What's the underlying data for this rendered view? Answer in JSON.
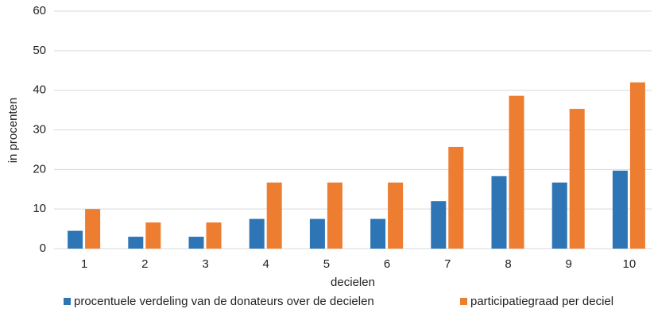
{
  "chart_data": {
    "type": "bar",
    "categories": [
      "1",
      "2",
      "3",
      "4",
      "5",
      "6",
      "7",
      "8",
      "9",
      "10"
    ],
    "series": [
      {
        "name": "procentuele verdeling van de donateurs over de decielen",
        "color": "#2e75b6",
        "values": [
          4.5,
          3,
          3,
          7.5,
          7.5,
          7.5,
          12,
          18.3,
          16.7,
          19.7
        ]
      },
      {
        "name": "participatiegraad per deciel",
        "color": "#ed7d31",
        "values": [
          10,
          6.6,
          6.6,
          16.7,
          16.7,
          16.7,
          25.7,
          38.6,
          35.3,
          42
        ]
      }
    ],
    "xlabel": "decielen",
    "ylabel": "in procenten",
    "ylim": [
      0,
      60
    ],
    "yticks": [
      0,
      10,
      20,
      30,
      40,
      50,
      60
    ],
    "grid": true,
    "legend": "bottom"
  }
}
